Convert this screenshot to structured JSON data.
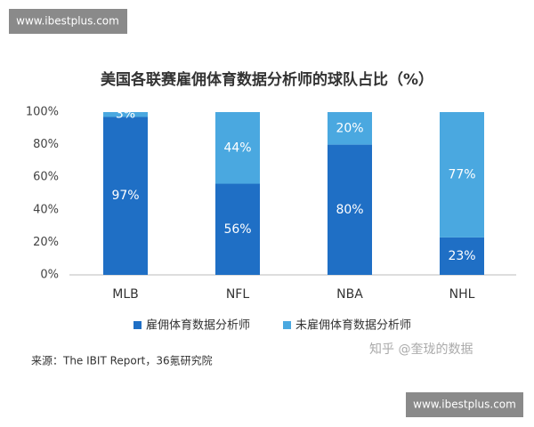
{
  "watermark_top": "www.ibestplus.com",
  "watermark_bottom": "www.ibestplus.com",
  "source": "来源：The IBIT Report，36氪研究院",
  "zhihu_watermark": "知乎 @奎珑的数据",
  "chart_data": {
    "type": "stacked-bar",
    "title": "美国各联赛雇佣体育数据分析师的球队占比（%）",
    "categories": [
      "MLB",
      "NFL",
      "NBA",
      "NHL"
    ],
    "series": [
      {
        "name": "雇佣体育数据分析师",
        "color": "#1f6fc5",
        "values": [
          97,
          56,
          80,
          23
        ],
        "value_labels": [
          "97%",
          "56%",
          "80%",
          "23%"
        ]
      },
      {
        "name": "未雇佣体育数据分析师",
        "color": "#4aa8e0",
        "values": [
          3,
          44,
          20,
          77
        ],
        "value_labels": [
          "3%",
          "44%",
          "20%",
          "77%"
        ]
      }
    ],
    "ylim": [
      0,
      100
    ],
    "yticks": [
      {
        "value": 0,
        "label": "0%"
      },
      {
        "value": 20,
        "label": "20%"
      },
      {
        "value": 40,
        "label": "40%"
      },
      {
        "value": 60,
        "label": "60%"
      },
      {
        "value": 80,
        "label": "80%"
      },
      {
        "value": 100,
        "label": "100%"
      }
    ],
    "grid": false,
    "legend": "bottom"
  }
}
